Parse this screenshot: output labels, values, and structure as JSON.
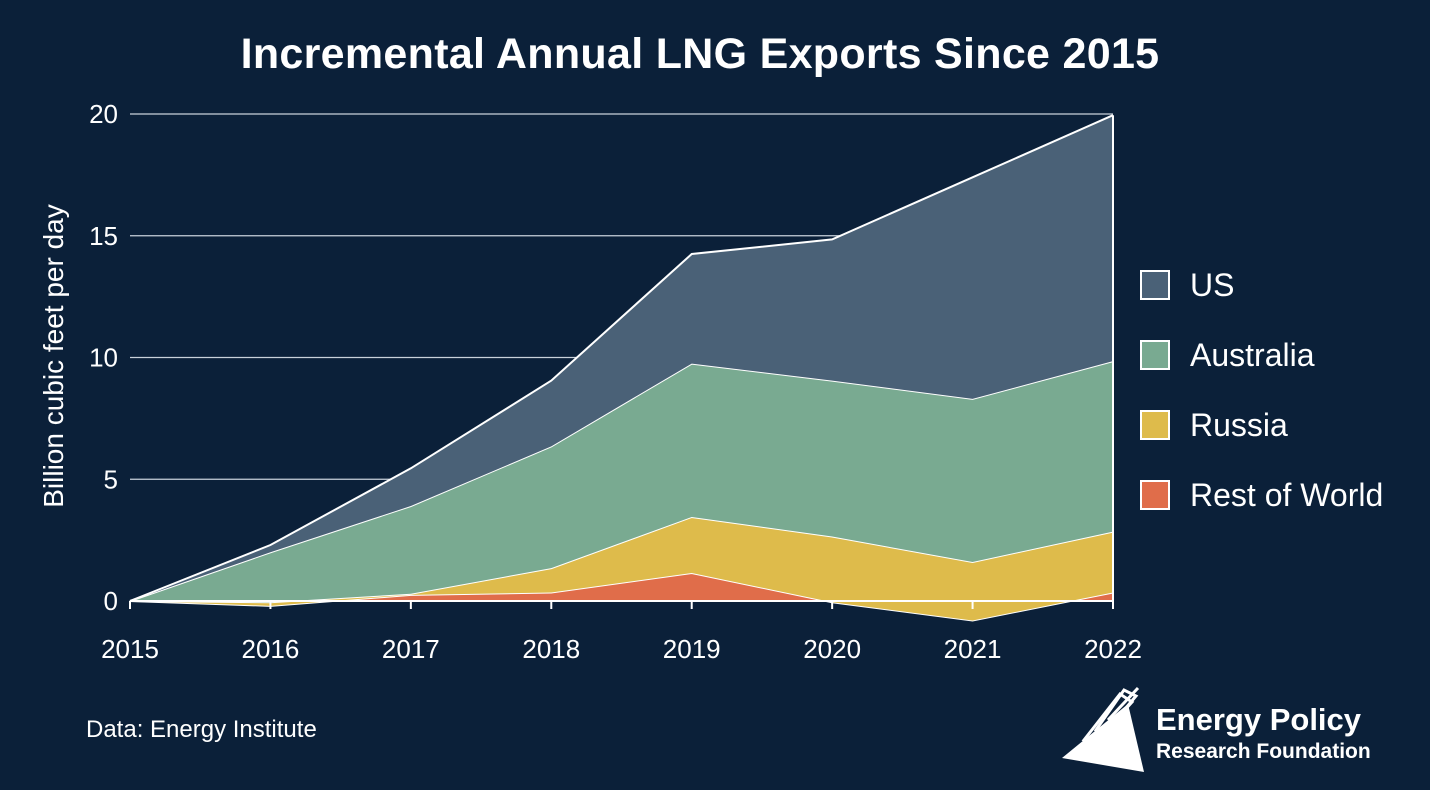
{
  "chart_data": {
    "type": "area",
    "title": "Incremental Annual LNG Exports Since 2015",
    "ylabel": "Billion cubic feet per day",
    "xlabel": "",
    "x": [
      "2015",
      "2016",
      "2017",
      "2018",
      "2019",
      "2020",
      "2021",
      "2022"
    ],
    "ylim": [
      0,
      20
    ],
    "yticks": [
      0,
      5,
      10,
      15,
      20
    ],
    "stacked": true,
    "grid": true,
    "legend_position": "right",
    "series": [
      {
        "name": "Rest of World",
        "color": "#e06d4a",
        "values": [
          0,
          -0.2,
          0.25,
          0.35,
          1.15,
          -0.05,
          -0.8,
          0.35
        ]
      },
      {
        "name": "Russia",
        "color": "#debb4b",
        "values": [
          0,
          0.15,
          0.05,
          1.0,
          2.3,
          2.7,
          2.4,
          2.5
        ]
      },
      {
        "name": "Australia",
        "color": "#79aa91",
        "values": [
          0,
          2.05,
          3.6,
          5.0,
          6.3,
          6.4,
          6.7,
          7.0
        ]
      },
      {
        "name": "US",
        "color": "#4a6177",
        "values": [
          0,
          0.3,
          1.55,
          2.7,
          4.5,
          5.8,
          9.1,
          10.1
        ]
      }
    ]
  },
  "legend": [
    {
      "name": "US",
      "color": "#4a6177"
    },
    {
      "name": "Australia",
      "color": "#79aa91"
    },
    {
      "name": "Russia",
      "color": "#debb4b"
    },
    {
      "name": "Rest of World",
      "color": "#e06d4a"
    }
  ],
  "footer": {
    "source": "Data: Energy Institute",
    "brand_line1": "Energy Policy",
    "brand_line2": "Research Foundation"
  }
}
